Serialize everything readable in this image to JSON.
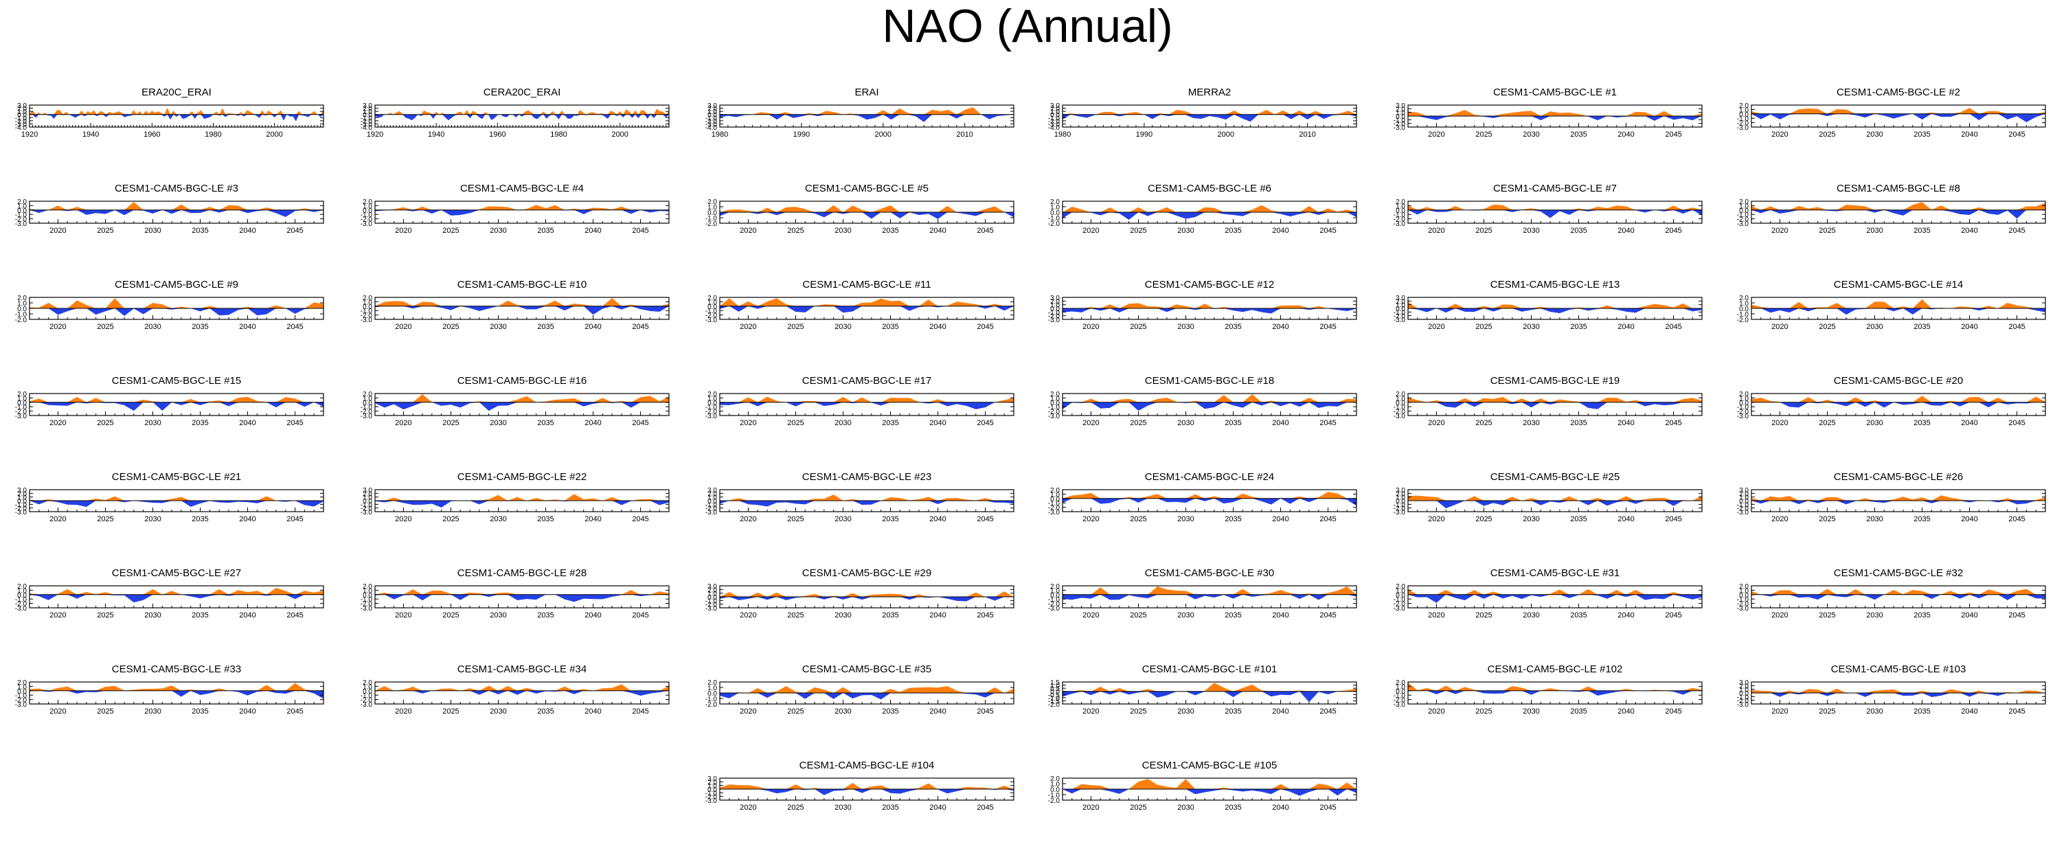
{
  "title": "NAO (Annual)",
  "colors": {
    "positive": "#ff7f0e",
    "negative": "#2340e6",
    "frame": "#000000",
    "background": "#ffffff"
  },
  "chart_data": [
    {
      "type": "area",
      "title": "ERA20C_ERAI",
      "x_start": 1920,
      "x_end": 2016,
      "xticks": [
        1920,
        1940,
        1960,
        1980,
        2000
      ],
      "yticks": [
        -4.0,
        -3.0,
        -2.0,
        -1.0,
        0.0,
        1.0,
        2.0,
        3.0
      ],
      "ylim": [
        -4.0,
        3.0
      ],
      "seed": 1,
      "amp": 1.1
    },
    {
      "type": "area",
      "title": "CERA20C_ERAI",
      "x_start": 1920,
      "x_end": 2016,
      "xticks": [
        1920,
        1940,
        1960,
        1980,
        2000
      ],
      "yticks": [
        -4.0,
        -3.0,
        -2.0,
        -1.0,
        0.0,
        1.0,
        2.0,
        3.0
      ],
      "ylim": [
        -4.0,
        3.0
      ],
      "seed": 2,
      "amp": 1.1
    },
    {
      "type": "area",
      "title": "ERAI",
      "x_start": 1980,
      "x_end": 2016,
      "xticks": [
        1980,
        1990,
        2000,
        2010
      ],
      "yticks": [
        -4.0,
        -3.0,
        -2.0,
        -1.0,
        0.0,
        1.0,
        2.0,
        3.0
      ],
      "ylim": [
        -4.0,
        3.0
      ],
      "seed": 3,
      "amp": 1.3
    },
    {
      "type": "area",
      "title": "MERRA2",
      "x_start": 1980,
      "x_end": 2016,
      "xticks": [
        1980,
        1990,
        2000,
        2010
      ],
      "yticks": [
        -4.0,
        -3.0,
        -2.0,
        -1.0,
        0.0,
        1.0,
        2.0,
        3.0
      ],
      "ylim": [
        -4.0,
        3.0
      ],
      "seed": 4,
      "amp": 1.3
    },
    {
      "type": "area",
      "title": "CESM1-CAM5-BGC-LE #1",
      "x_start": 2017,
      "x_end": 2048,
      "xticks": [
        2020,
        2025,
        2030,
        2035,
        2040,
        2045
      ],
      "yticks": [
        -3.0,
        -2.0,
        -1.0,
        0.0,
        1.0,
        2.0,
        3.0
      ],
      "ylim": [
        -3.0,
        3.0
      ],
      "seed": 5,
      "amp": 1.2
    },
    {
      "type": "area",
      "title": "CESM1-CAM5-BGC-LE #2",
      "x_start": 2017,
      "x_end": 2048,
      "xticks": [
        2020,
        2025,
        2030,
        2035,
        2040,
        2045
      ],
      "yticks": [
        -3.0,
        -2.0,
        -1.0,
        0.0,
        1.0,
        2.0
      ],
      "ylim": [
        -3.0,
        2.0
      ],
      "seed": 6,
      "amp": 1.0
    },
    {
      "type": "area",
      "title": "CESM1-CAM5-BGC-LE #3",
      "x_start": 2017,
      "x_end": 2048,
      "xticks": [
        2020,
        2025,
        2030,
        2035,
        2040,
        2045
      ],
      "yticks": [
        -3.0,
        -2.0,
        -1.0,
        0.0,
        1.0,
        2.0
      ],
      "ylim": [
        -3.0,
        2.0
      ],
      "seed": 7,
      "amp": 1.0
    },
    {
      "type": "area",
      "title": "CESM1-CAM5-BGC-LE #4",
      "x_start": 2017,
      "x_end": 2048,
      "xticks": [
        2020,
        2025,
        2030,
        2035,
        2040,
        2045
      ],
      "yticks": [
        -3.0,
        -2.0,
        -1.0,
        0.0,
        1.0,
        2.0
      ],
      "ylim": [
        -3.0,
        2.0
      ],
      "seed": 8,
      "amp": 1.0
    },
    {
      "type": "area",
      "title": "CESM1-CAM5-BGC-LE #5",
      "x_start": 2017,
      "x_end": 2048,
      "xticks": [
        2020,
        2025,
        2030,
        2035,
        2040,
        2045
      ],
      "yticks": [
        -2.0,
        -1.0,
        0.0,
        1.0,
        2.0
      ],
      "ylim": [
        -2.0,
        2.0
      ],
      "seed": 9,
      "amp": 1.0
    },
    {
      "type": "area",
      "title": "CESM1-CAM5-BGC-LE #6",
      "x_start": 2017,
      "x_end": 2048,
      "xticks": [
        2020,
        2025,
        2030,
        2035,
        2040,
        2045
      ],
      "yticks": [
        -2.0,
        -1.0,
        0.0,
        1.0,
        2.0
      ],
      "ylim": [
        -2.0,
        2.0
      ],
      "seed": 10,
      "amp": 1.0
    },
    {
      "type": "area",
      "title": "CESM1-CAM5-BGC-LE #7",
      "x_start": 2017,
      "x_end": 2048,
      "xticks": [
        2020,
        2025,
        2030,
        2035,
        2040,
        2045
      ],
      "yticks": [
        -3.0,
        -2.0,
        -1.0,
        0.0,
        1.0,
        2.0
      ],
      "ylim": [
        -3.0,
        2.0
      ],
      "seed": 11,
      "amp": 1.0
    },
    {
      "type": "area",
      "title": "CESM1-CAM5-BGC-LE #8",
      "x_start": 2017,
      "x_end": 2048,
      "xticks": [
        2020,
        2025,
        2030,
        2035,
        2040,
        2045
      ],
      "yticks": [
        -3.0,
        -2.0,
        -1.0,
        0.0,
        1.0,
        2.0
      ],
      "ylim": [
        -3.0,
        2.0
      ],
      "seed": 12,
      "amp": 1.0
    },
    {
      "type": "area",
      "title": "CESM1-CAM5-BGC-LE #9",
      "x_start": 2017,
      "x_end": 2048,
      "xticks": [
        2020,
        2025,
        2030,
        2035,
        2040,
        2045
      ],
      "yticks": [
        -2.0,
        -1.0,
        0.0,
        1.0,
        2.0
      ],
      "ylim": [
        -2.0,
        2.0
      ],
      "seed": 13,
      "amp": 1.0
    },
    {
      "type": "area",
      "title": "CESM1-CAM5-BGC-LE #10",
      "x_start": 2017,
      "x_end": 2048,
      "xticks": [
        2020,
        2025,
        2030,
        2035,
        2040,
        2045
      ],
      "yticks": [
        -3.0,
        -2.0,
        -1.0,
        0.0,
        1.0,
        2.0
      ],
      "ylim": [
        -3.0,
        2.0
      ],
      "seed": 14,
      "amp": 1.0
    },
    {
      "type": "area",
      "title": "CESM1-CAM5-BGC-LE #11",
      "x_start": 2017,
      "x_end": 2048,
      "xticks": [
        2020,
        2025,
        2030,
        2035,
        2040,
        2045
      ],
      "yticks": [
        -3.0,
        -2.0,
        -1.0,
        0.0,
        1.0,
        2.0
      ],
      "ylim": [
        -3.0,
        2.0
      ],
      "seed": 15,
      "amp": 1.0
    },
    {
      "type": "area",
      "title": "CESM1-CAM5-BGC-LE #12",
      "x_start": 2017,
      "x_end": 2048,
      "xticks": [
        2020,
        2025,
        2030,
        2035,
        2040,
        2045
      ],
      "yticks": [
        -3.0,
        -2.0,
        -1.0,
        0.0,
        1.0,
        2.0,
        3.0
      ],
      "ylim": [
        -3.0,
        3.0
      ],
      "seed": 16,
      "amp": 1.0
    },
    {
      "type": "area",
      "title": "CESM1-CAM5-BGC-LE #13",
      "x_start": 2017,
      "x_end": 2048,
      "xticks": [
        2020,
        2025,
        2030,
        2035,
        2040,
        2045
      ],
      "yticks": [
        -3.0,
        -2.0,
        -1.0,
        0.0,
        1.0,
        2.0,
        3.0
      ],
      "ylim": [
        -3.0,
        3.0
      ],
      "seed": 17,
      "amp": 1.1
    },
    {
      "type": "area",
      "title": "CESM1-CAM5-BGC-LE #14",
      "x_start": 2017,
      "x_end": 2048,
      "xticks": [
        2020,
        2025,
        2030,
        2035,
        2040,
        2045
      ],
      "yticks": [
        -2.0,
        -1.0,
        0.0,
        1.0,
        2.0
      ],
      "ylim": [
        -2.0,
        2.0
      ],
      "seed": 18,
      "amp": 1.0
    },
    {
      "type": "area",
      "title": "CESM1-CAM5-BGC-LE #15",
      "x_start": 2017,
      "x_end": 2048,
      "xticks": [
        2020,
        2025,
        2030,
        2035,
        2040,
        2045
      ],
      "yticks": [
        -3.0,
        -2.0,
        -1.0,
        0.0,
        1.0,
        2.0
      ],
      "ylim": [
        -3.0,
        2.0
      ],
      "seed": 19,
      "amp": 1.0
    },
    {
      "type": "area",
      "title": "CESM1-CAM5-BGC-LE #16",
      "x_start": 2017,
      "x_end": 2048,
      "xticks": [
        2020,
        2025,
        2030,
        2035,
        2040,
        2045
      ],
      "yticks": [
        -3.0,
        -2.0,
        -1.0,
        0.0,
        1.0,
        2.0
      ],
      "ylim": [
        -3.0,
        2.0
      ],
      "seed": 20,
      "amp": 1.0
    },
    {
      "type": "area",
      "title": "CESM1-CAM5-BGC-LE #17",
      "x_start": 2017,
      "x_end": 2048,
      "xticks": [
        2020,
        2025,
        2030,
        2035,
        2040,
        2045
      ],
      "yticks": [
        -3.0,
        -2.0,
        -1.0,
        0.0,
        1.0,
        2.0
      ],
      "ylim": [
        -3.0,
        2.0
      ],
      "seed": 21,
      "amp": 1.0
    },
    {
      "type": "area",
      "title": "CESM1-CAM5-BGC-LE #18",
      "x_start": 2017,
      "x_end": 2048,
      "xticks": [
        2020,
        2025,
        2030,
        2035,
        2040,
        2045
      ],
      "yticks": [
        -3.0,
        -2.0,
        -1.0,
        0.0,
        1.0,
        2.0
      ],
      "ylim": [
        -3.0,
        2.0
      ],
      "seed": 22,
      "amp": 1.0
    },
    {
      "type": "area",
      "title": "CESM1-CAM5-BGC-LE #19",
      "x_start": 2017,
      "x_end": 2048,
      "xticks": [
        2020,
        2025,
        2030,
        2035,
        2040,
        2045
      ],
      "yticks": [
        -3.0,
        -2.0,
        -1.0,
        0.0,
        1.0,
        2.0
      ],
      "ylim": [
        -3.0,
        2.0
      ],
      "seed": 23,
      "amp": 1.0
    },
    {
      "type": "area",
      "title": "CESM1-CAM5-BGC-LE #20",
      "x_start": 2017,
      "x_end": 2048,
      "xticks": [
        2020,
        2025,
        2030,
        2035,
        2040,
        2045
      ],
      "yticks": [
        -3.0,
        -2.0,
        -1.0,
        0.0,
        1.0,
        2.0
      ],
      "ylim": [
        -3.0,
        2.0
      ],
      "seed": 24,
      "amp": 1.0
    },
    {
      "type": "area",
      "title": "CESM1-CAM5-BGC-LE #21",
      "x_start": 2017,
      "x_end": 2048,
      "xticks": [
        2020,
        2025,
        2030,
        2035,
        2040,
        2045
      ],
      "yticks": [
        -3.0,
        -2.0,
        -1.0,
        0.0,
        1.0,
        2.0,
        3.0
      ],
      "ylim": [
        -3.0,
        3.0
      ],
      "seed": 25,
      "amp": 1.0
    },
    {
      "type": "area",
      "title": "CESM1-CAM5-BGC-LE #22",
      "x_start": 2017,
      "x_end": 2048,
      "xticks": [
        2020,
        2025,
        2030,
        2035,
        2040,
        2045
      ],
      "yticks": [
        -3.0,
        -2.0,
        -1.0,
        0.0,
        1.0,
        2.0,
        3.0
      ],
      "ylim": [
        -3.0,
        3.0
      ],
      "seed": 26,
      "amp": 1.0
    },
    {
      "type": "area",
      "title": "CESM1-CAM5-BGC-LE #23",
      "x_start": 2017,
      "x_end": 2048,
      "xticks": [
        2020,
        2025,
        2030,
        2035,
        2040,
        2045
      ],
      "yticks": [
        -3.0,
        -2.0,
        -1.0,
        0.0,
        1.0,
        2.0,
        3.0
      ],
      "ylim": [
        -3.0,
        3.0
      ],
      "seed": 27,
      "amp": 1.0
    },
    {
      "type": "area",
      "title": "CESM1-CAM5-BGC-LE #24",
      "x_start": 2017,
      "x_end": 2048,
      "xticks": [
        2020,
        2025,
        2030,
        2035,
        2040,
        2045
      ],
      "yticks": [
        -3.0,
        -2.0,
        -1.0,
        0.0,
        1.0,
        2.0
      ],
      "ylim": [
        -3.0,
        2.0
      ],
      "seed": 28,
      "amp": 1.0
    },
    {
      "type": "area",
      "title": "CESM1-CAM5-BGC-LE #25",
      "x_start": 2017,
      "x_end": 2048,
      "xticks": [
        2020,
        2025,
        2030,
        2035,
        2040,
        2045
      ],
      "yticks": [
        -3.0,
        -2.0,
        -1.0,
        0.0,
        1.0,
        2.0,
        3.0
      ],
      "ylim": [
        -3.0,
        3.0
      ],
      "seed": 29,
      "amp": 1.1
    },
    {
      "type": "area",
      "title": "CESM1-CAM5-BGC-LE #26",
      "x_start": 2017,
      "x_end": 2048,
      "xticks": [
        2020,
        2025,
        2030,
        2035,
        2040,
        2045
      ],
      "yticks": [
        -3.0,
        -2.0,
        -1.0,
        0.0,
        1.0,
        2.0,
        3.0
      ],
      "ylim": [
        -3.0,
        3.0
      ],
      "seed": 30,
      "amp": 1.0
    },
    {
      "type": "area",
      "title": "CESM1-CAM5-BGC-LE #27",
      "x_start": 2017,
      "x_end": 2048,
      "xticks": [
        2020,
        2025,
        2030,
        2035,
        2040,
        2045
      ],
      "yticks": [
        -3.0,
        -2.0,
        -1.0,
        0.0,
        1.0,
        2.0
      ],
      "ylim": [
        -3.0,
        2.0
      ],
      "seed": 31,
      "amp": 1.0
    },
    {
      "type": "area",
      "title": "CESM1-CAM5-BGC-LE #28",
      "x_start": 2017,
      "x_end": 2048,
      "xticks": [
        2020,
        2025,
        2030,
        2035,
        2040,
        2045
      ],
      "yticks": [
        -3.0,
        -2.0,
        -1.0,
        0.0,
        1.0,
        2.0
      ],
      "ylim": [
        -3.0,
        2.0
      ],
      "seed": 32,
      "amp": 1.0
    },
    {
      "type": "area",
      "title": "CESM1-CAM5-BGC-LE #29",
      "x_start": 2017,
      "x_end": 2048,
      "xticks": [
        2020,
        2025,
        2030,
        2035,
        2040,
        2045
      ],
      "yticks": [
        -3.0,
        -2.0,
        -1.0,
        0.0,
        1.0,
        2.0,
        3.0
      ],
      "ylim": [
        -3.0,
        3.0
      ],
      "seed": 33,
      "amp": 1.0
    },
    {
      "type": "area",
      "title": "CESM1-CAM5-BGC-LE #30",
      "x_start": 2017,
      "x_end": 2048,
      "xticks": [
        2020,
        2025,
        2030,
        2035,
        2040,
        2045
      ],
      "yticks": [
        -3.0,
        -2.0,
        -1.0,
        0.0,
        1.0,
        2.0
      ],
      "ylim": [
        -3.0,
        2.0
      ],
      "seed": 34,
      "amp": 1.0
    },
    {
      "type": "area",
      "title": "CESM1-CAM5-BGC-LE #31",
      "x_start": 2017,
      "x_end": 2048,
      "xticks": [
        2020,
        2025,
        2030,
        2035,
        2040,
        2045
      ],
      "yticks": [
        -3.0,
        -2.0,
        -1.0,
        0.0,
        1.0,
        2.0
      ],
      "ylim": [
        -3.0,
        2.0
      ],
      "seed": 35,
      "amp": 1.0
    },
    {
      "type": "area",
      "title": "CESM1-CAM5-BGC-LE #32",
      "x_start": 2017,
      "x_end": 2048,
      "xticks": [
        2020,
        2025,
        2030,
        2035,
        2040,
        2045
      ],
      "yticks": [
        -3.0,
        -2.0,
        -1.0,
        0.0,
        1.0,
        2.0
      ],
      "ylim": [
        -3.0,
        2.0
      ],
      "seed": 36,
      "amp": 1.0
    },
    {
      "type": "area",
      "title": "CESM1-CAM5-BGC-LE #33",
      "x_start": 2017,
      "x_end": 2048,
      "xticks": [
        2020,
        2025,
        2030,
        2035,
        2040,
        2045
      ],
      "yticks": [
        -3.0,
        -2.0,
        -1.0,
        0.0,
        1.0,
        2.0
      ],
      "ylim": [
        -3.0,
        2.0
      ],
      "seed": 37,
      "amp": 1.0
    },
    {
      "type": "area",
      "title": "CESM1-CAM5-BGC-LE #34",
      "x_start": 2017,
      "x_end": 2048,
      "xticks": [
        2020,
        2025,
        2030,
        2035,
        2040,
        2045
      ],
      "yticks": [
        -3.0,
        -2.0,
        -1.0,
        0.0,
        1.0,
        2.0
      ],
      "ylim": [
        -3.0,
        2.0
      ],
      "seed": 38,
      "amp": 1.0
    },
    {
      "type": "area",
      "title": "CESM1-CAM5-BGC-LE #35",
      "x_start": 2017,
      "x_end": 2048,
      "xticks": [
        2020,
        2025,
        2030,
        2035,
        2040,
        2045
      ],
      "yticks": [
        -2.0,
        -1.0,
        0.0,
        1.0,
        2.0
      ],
      "ylim": [
        -2.0,
        2.0
      ],
      "seed": 39,
      "amp": 1.0
    },
    {
      "type": "area",
      "title": "CESM1-CAM5-BGC-LE #101",
      "x_start": 2017,
      "x_end": 2048,
      "xticks": [
        2020,
        2025,
        2030,
        2035,
        2040,
        2045
      ],
      "yticks": [
        -2.0,
        -1.5,
        -1.0,
        -0.5,
        0.0,
        0.5,
        1.0,
        1.5
      ],
      "ylim": [
        -2.0,
        1.5
      ],
      "seed": 40,
      "amp": 0.9
    },
    {
      "type": "area",
      "title": "CESM1-CAM5-BGC-LE #102",
      "x_start": 2017,
      "x_end": 2048,
      "xticks": [
        2020,
        2025,
        2030,
        2035,
        2040,
        2045
      ],
      "yticks": [
        -3.0,
        -2.0,
        -1.0,
        0.0,
        1.0,
        2.0
      ],
      "ylim": [
        -3.0,
        2.0
      ],
      "seed": 41,
      "amp": 1.0
    },
    {
      "type": "area",
      "title": "CESM1-CAM5-BGC-LE #103",
      "x_start": 2017,
      "x_end": 2048,
      "xticks": [
        2020,
        2025,
        2030,
        2035,
        2040,
        2045
      ],
      "yticks": [
        -3.0,
        -2.0,
        -1.0,
        0.0,
        1.0,
        2.0,
        3.0
      ],
      "ylim": [
        -3.0,
        3.0
      ],
      "seed": 42,
      "amp": 0.9
    },
    {
      "type": "area",
      "title": "CESM1-CAM5-BGC-LE #104",
      "x_start": 2017,
      "x_end": 2048,
      "xticks": [
        2020,
        2025,
        2030,
        2035,
        2040,
        2045
      ],
      "yticks": [
        -3.0,
        -2.0,
        -1.0,
        0.0,
        1.0,
        2.0,
        3.0
      ],
      "ylim": [
        -3.0,
        3.0
      ],
      "seed": 43,
      "amp": 1.0
    },
    {
      "type": "area",
      "title": "CESM1-CAM5-BGC-LE #105",
      "x_start": 2017,
      "x_end": 2048,
      "xticks": [
        2020,
        2025,
        2030,
        2035,
        2040,
        2045
      ],
      "yticks": [
        -2.0,
        -1.0,
        0.0,
        1.0,
        2.0
      ],
      "ylim": [
        -2.0,
        2.0
      ],
      "seed": 44,
      "amp": 1.0
    }
  ]
}
